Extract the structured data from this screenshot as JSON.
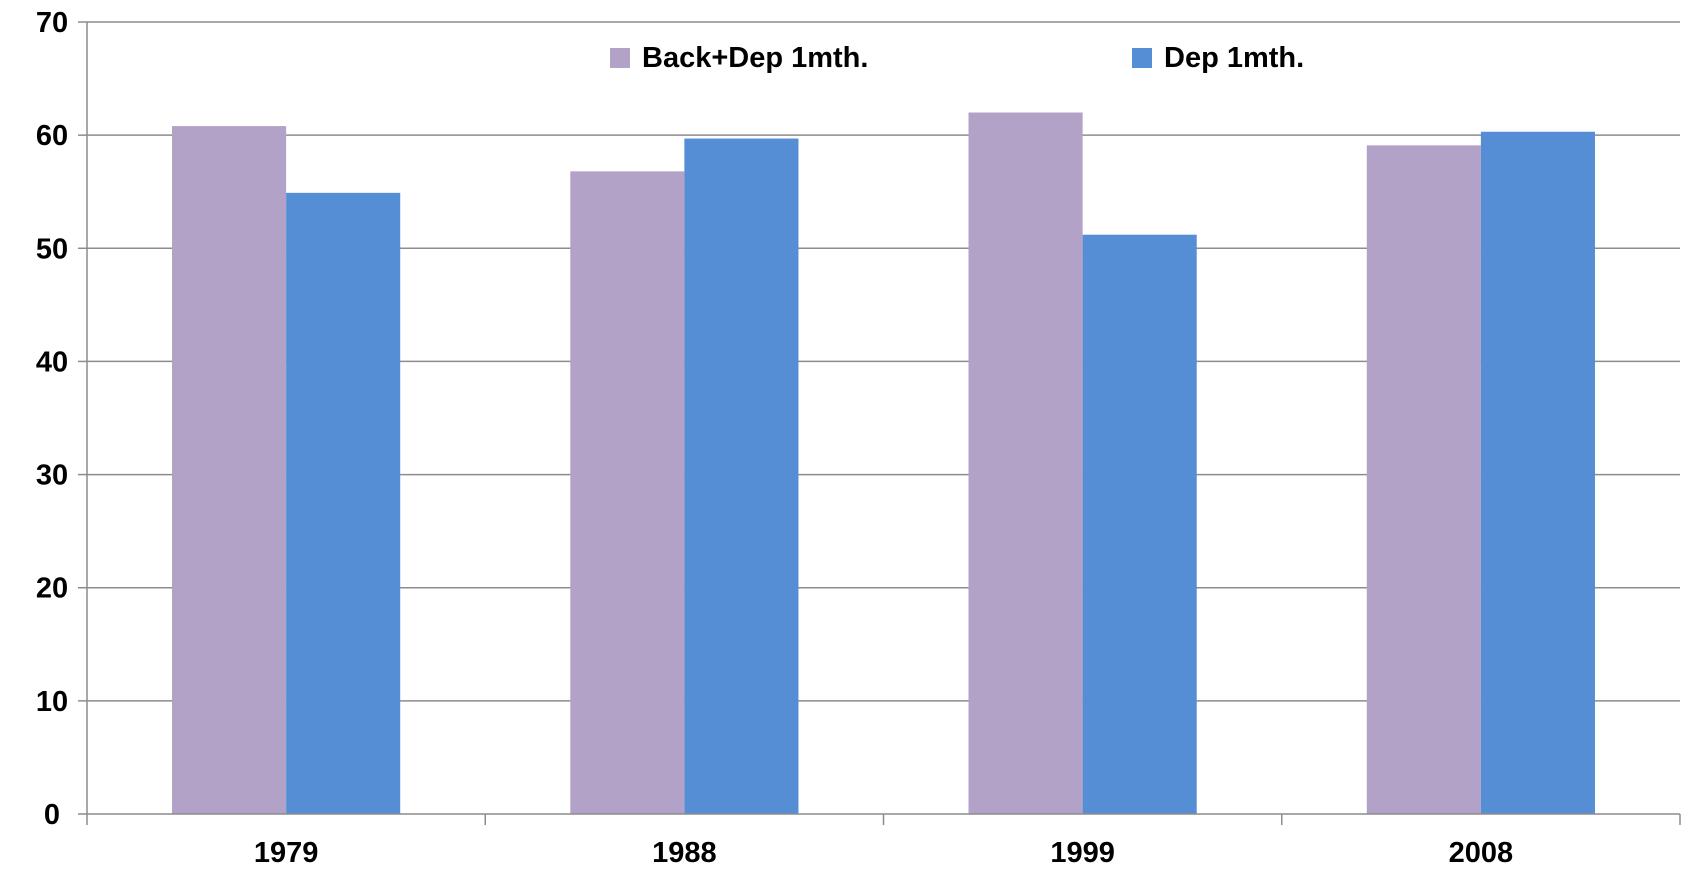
{
  "chart_data": {
    "type": "bar",
    "categories": [
      "1979",
      "1988",
      "1999",
      "2008"
    ],
    "series": [
      {
        "name": "Back+Dep 1mth.",
        "values": [
          60.8,
          56.8,
          62.0,
          59.1
        ],
        "color": "#b3a2c7"
      },
      {
        "name": "Dep 1mth.",
        "values": [
          54.9,
          59.7,
          51.2,
          60.3
        ],
        "color": "#558ed5"
      }
    ],
    "title": "",
    "xlabel": "",
    "ylabel": "",
    "ylim": [
      0,
      70
    ],
    "yticks": [
      0,
      10,
      20,
      30,
      40,
      50,
      60,
      70
    ],
    "grid": true,
    "legend_position": "top-center"
  }
}
